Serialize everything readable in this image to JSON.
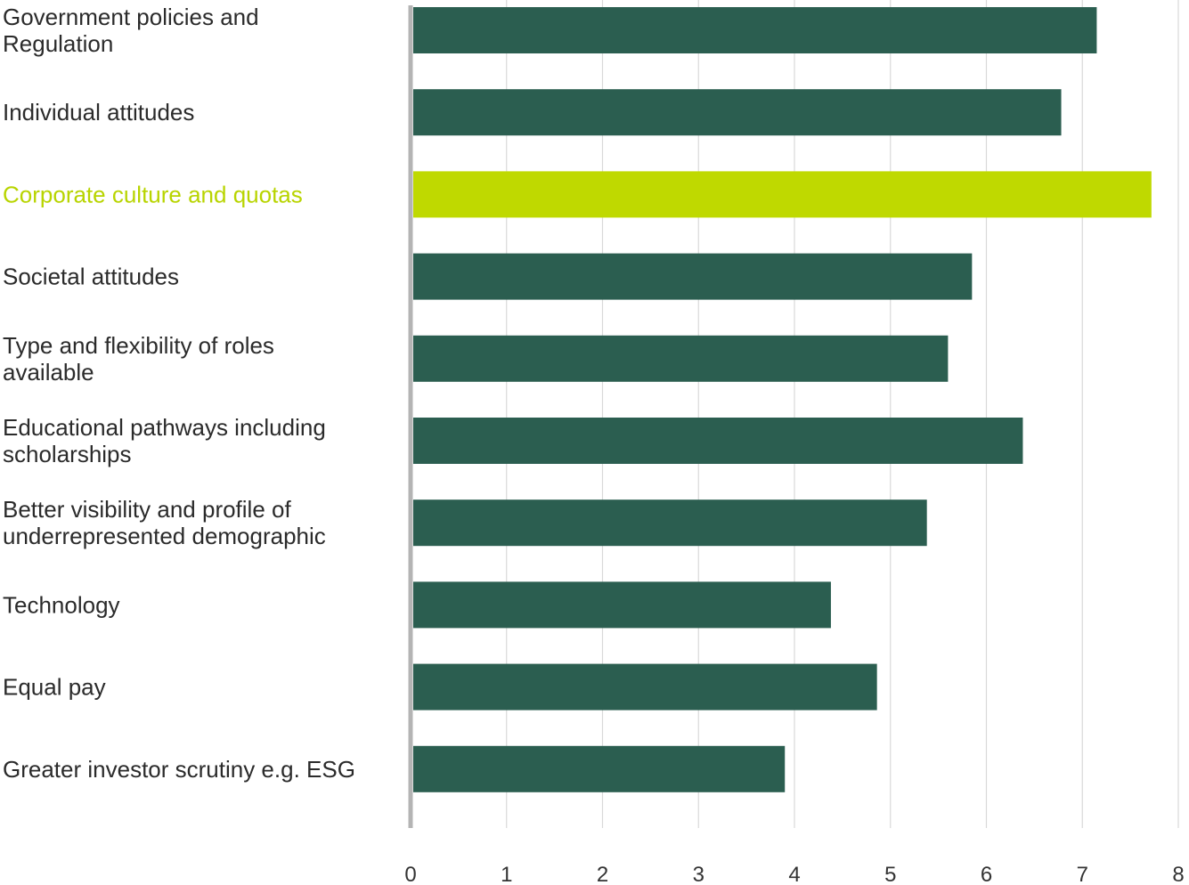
{
  "colors": {
    "bar": "#2b5e50",
    "highlight_bar": "#bfd900",
    "highlight_label": "#b8d400",
    "grid": "#d9d9d9",
    "axis": "#b4b4b4",
    "text": "#2b2b2b"
  },
  "chart_data": {
    "type": "bar",
    "orientation": "horizontal",
    "title": "",
    "xlabel": "",
    "ylabel": "",
    "xlim": [
      0,
      8
    ],
    "x_ticks": [
      0,
      1,
      2,
      3,
      4,
      5,
      6,
      7,
      8
    ],
    "grid": true,
    "legend": "none",
    "highlight_index": 2,
    "categories": [
      [
        "Government policies and",
        "Regulation"
      ],
      [
        "Individual attitudes"
      ],
      [
        "Corporate culture and quotas"
      ],
      [
        "Societal attitudes"
      ],
      [
        "Type and flexibility of roles",
        "available"
      ],
      [
        "Educational pathways including",
        "scholarships"
      ],
      [
        "Better visibility and profile of",
        "underrepresented demographic"
      ],
      [
        "Technology"
      ],
      [
        "Equal pay"
      ],
      [
        "Greater investor scrutiny e.g. ESG"
      ]
    ],
    "values": [
      7.15,
      6.78,
      7.72,
      5.85,
      5.6,
      6.38,
      5.38,
      4.38,
      4.86,
      3.9
    ]
  }
}
